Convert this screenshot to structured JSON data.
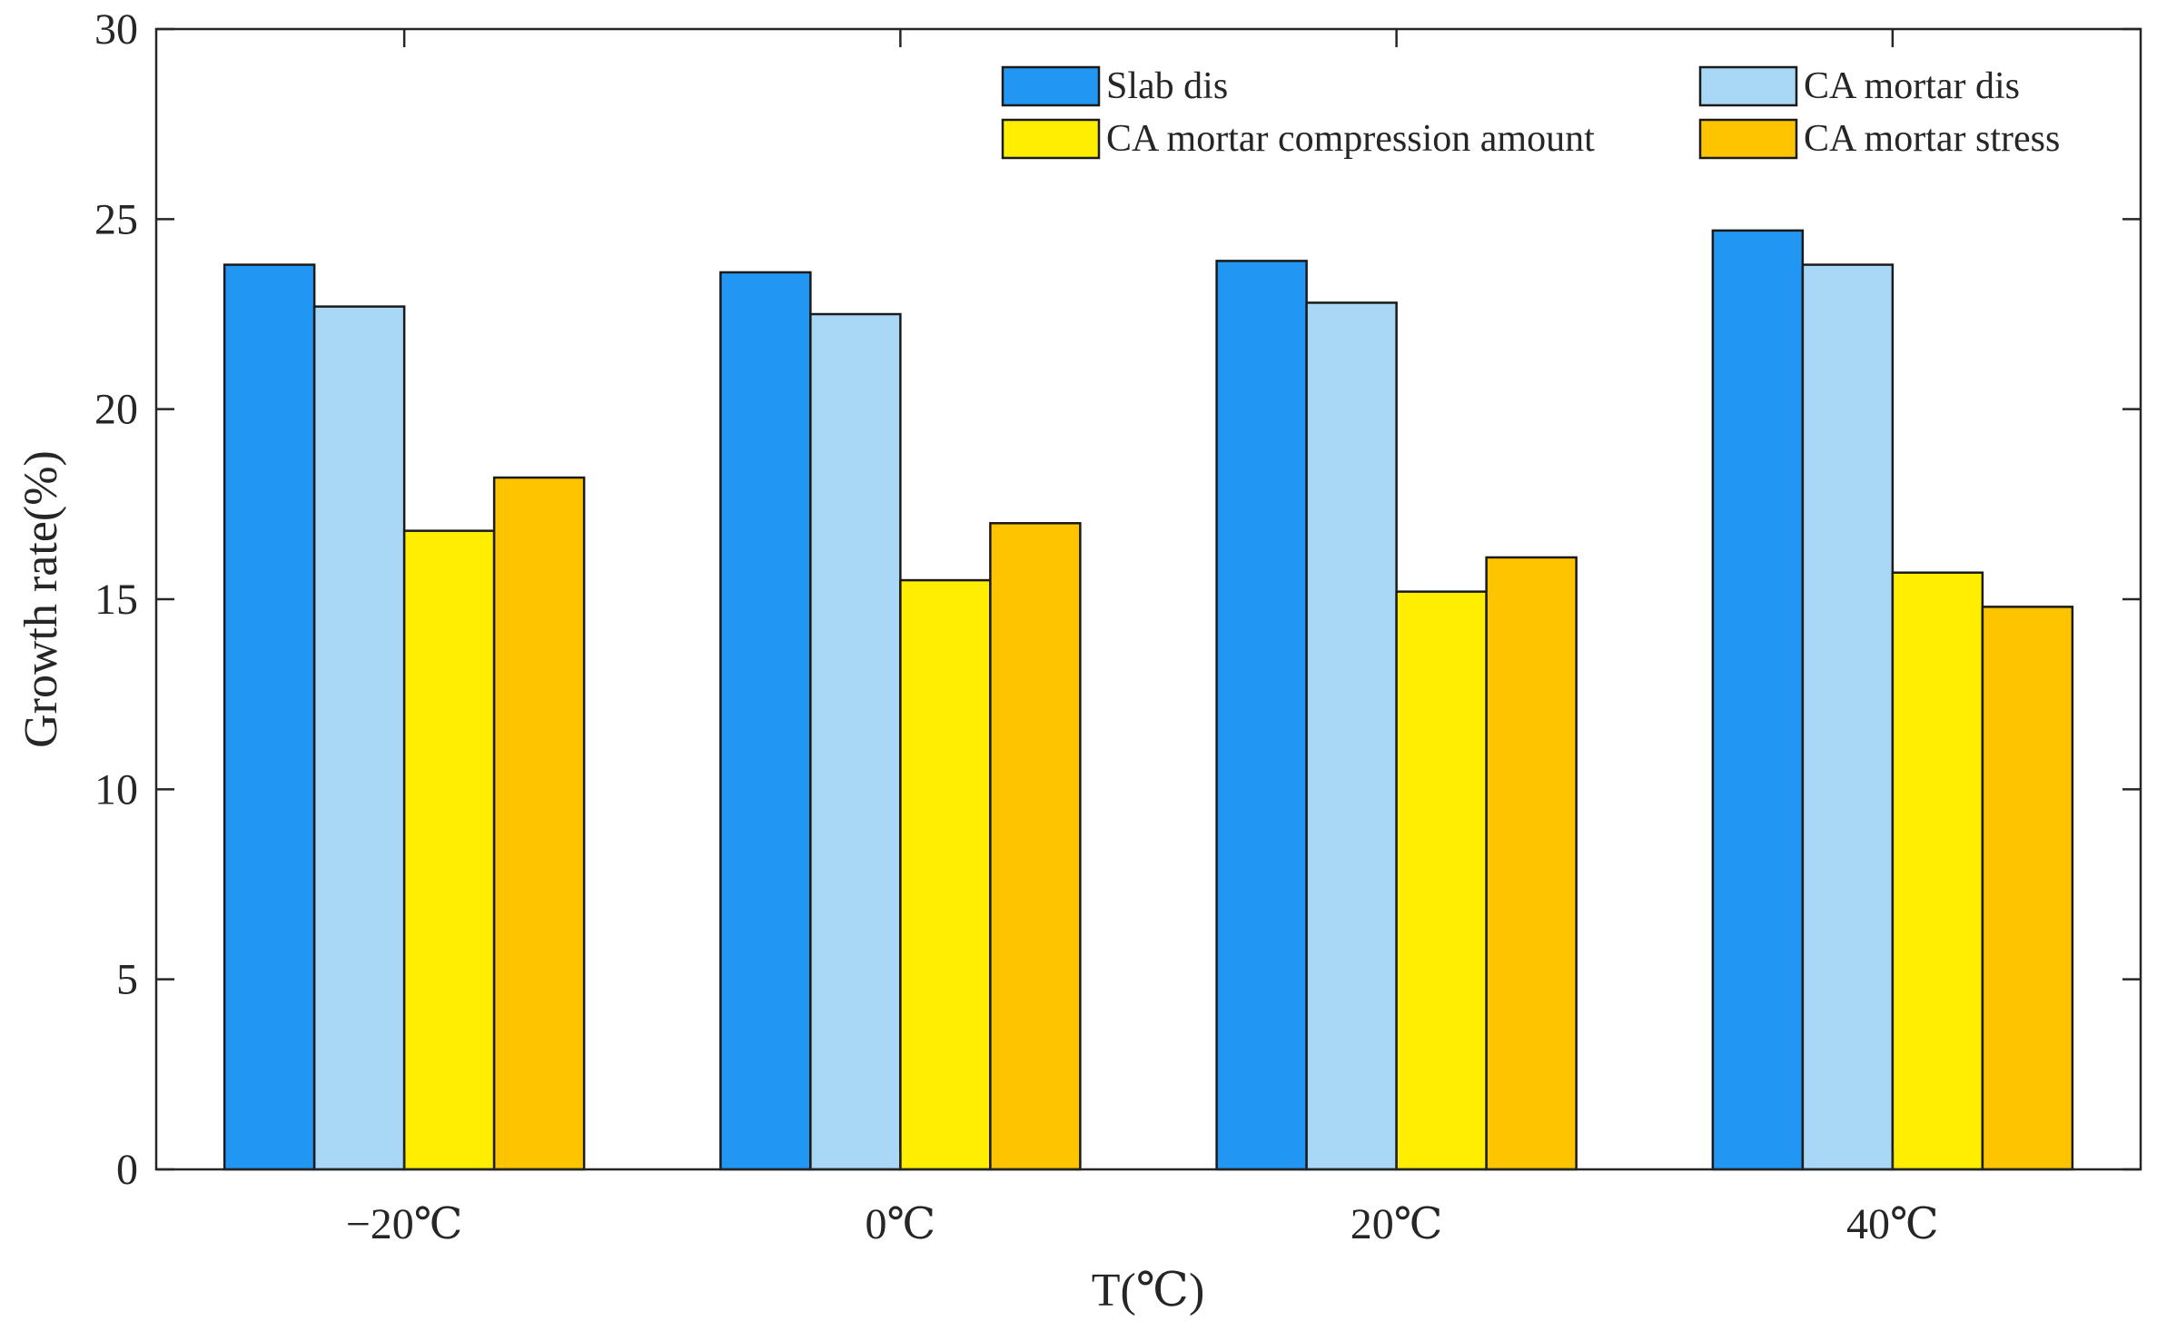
{
  "chart_data": {
    "type": "bar",
    "title": "",
    "xlabel": "T(℃)",
    "ylabel": "Growth rate(%)",
    "ylim": [
      0,
      30
    ],
    "yticks": [
      "0",
      "5",
      "10",
      "15",
      "20",
      "25",
      "30"
    ],
    "categories": [
      "−20℃",
      "0℃",
      "20℃",
      "40℃"
    ],
    "series": [
      {
        "name": "Slab dis",
        "color": "#2196f3",
        "values": [
          23.8,
          23.6,
          23.9,
          24.7
        ]
      },
      {
        "name": "CA mortar dis",
        "color": "#a8d8f5",
        "values": [
          22.7,
          22.5,
          22.8,
          23.8
        ]
      },
      {
        "name": "CA mortar compression amount",
        "color": "#ffee00",
        "values": [
          16.8,
          15.5,
          15.2,
          15.7
        ]
      },
      {
        "name": "CA mortar stress",
        "color": "#ffc400",
        "values": [
          18.2,
          17.0,
          16.1,
          14.8
        ]
      }
    ],
    "legend_location": "top-right",
    "grid": false
  }
}
